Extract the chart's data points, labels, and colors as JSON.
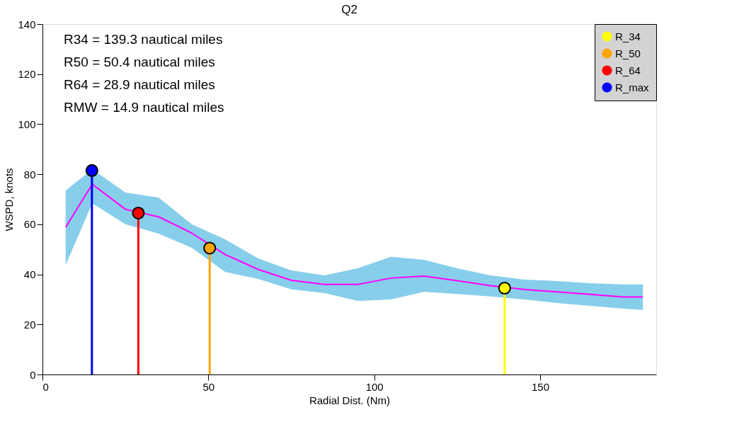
{
  "chart_data": {
    "type": "line",
    "title": "Q2",
    "xlabel": "Radial Dist. (Nm)",
    "ylabel": "WSPD, knots",
    "xlim": [
      0,
      185
    ],
    "xticks": [
      0,
      50,
      100,
      150
    ],
    "ylim": [
      0,
      140
    ],
    "yticks": [
      0,
      20,
      40,
      60,
      80,
      100,
      120,
      140
    ],
    "grid": false,
    "legend": "top right",
    "marker": "circle",
    "annotations": [
      "R34 = 139.3 nautical miles",
      "R50 = 50.4 nautical miles",
      "R64 = 28.9 nautical miles",
      "RMW = 14.9 nautical miles"
    ],
    "series": [
      {
        "color": "#ff00ff",
        "marker": "none",
        "x": [
          7,
          15,
          25,
          35,
          45,
          55,
          65,
          75,
          85,
          95,
          105,
          115,
          125,
          135,
          145,
          155,
          165,
          175,
          181
        ],
        "values": [
          58.8,
          76,
          66,
          63,
          56.5,
          48,
          42,
          37.6,
          36,
          36,
          38.5,
          39.3,
          37.5,
          35.5,
          34,
          33,
          32,
          31,
          31
        ],
        "lower": [
          43.8,
          68.4,
          60,
          56.3,
          50.6,
          41,
          38.2,
          34,
          32.5,
          29.4,
          30,
          33,
          32.2,
          31.2,
          30,
          28.6,
          27.4,
          26.3,
          25.8
        ],
        "upper": [
          73.5,
          82,
          72.7,
          70.7,
          60,
          54,
          46.4,
          41.6,
          39.6,
          42.4,
          47,
          45.8,
          42.4,
          39.6,
          38,
          37.3,
          36.5,
          36,
          36
        ]
      },
      {
        "type": "lollipop",
        "name": "R_34",
        "color": "#ffff00",
        "x": [
          139.3
        ],
        "values": [
          34.5
        ]
      },
      {
        "type": "lollipop",
        "name": "R_50",
        "color": "#ffa500",
        "x": [
          50.4
        ],
        "values": [
          50.5
        ]
      },
      {
        "type": "lollipop",
        "name": "R_64",
        "color": "#ff0000",
        "x": [
          28.9
        ],
        "values": [
          64.5
        ]
      },
      {
        "type": "lollipop",
        "name": "R_max",
        "color": "#0000ff",
        "x": [
          14.9
        ],
        "values": [
          81.5
        ]
      }
    ]
  }
}
